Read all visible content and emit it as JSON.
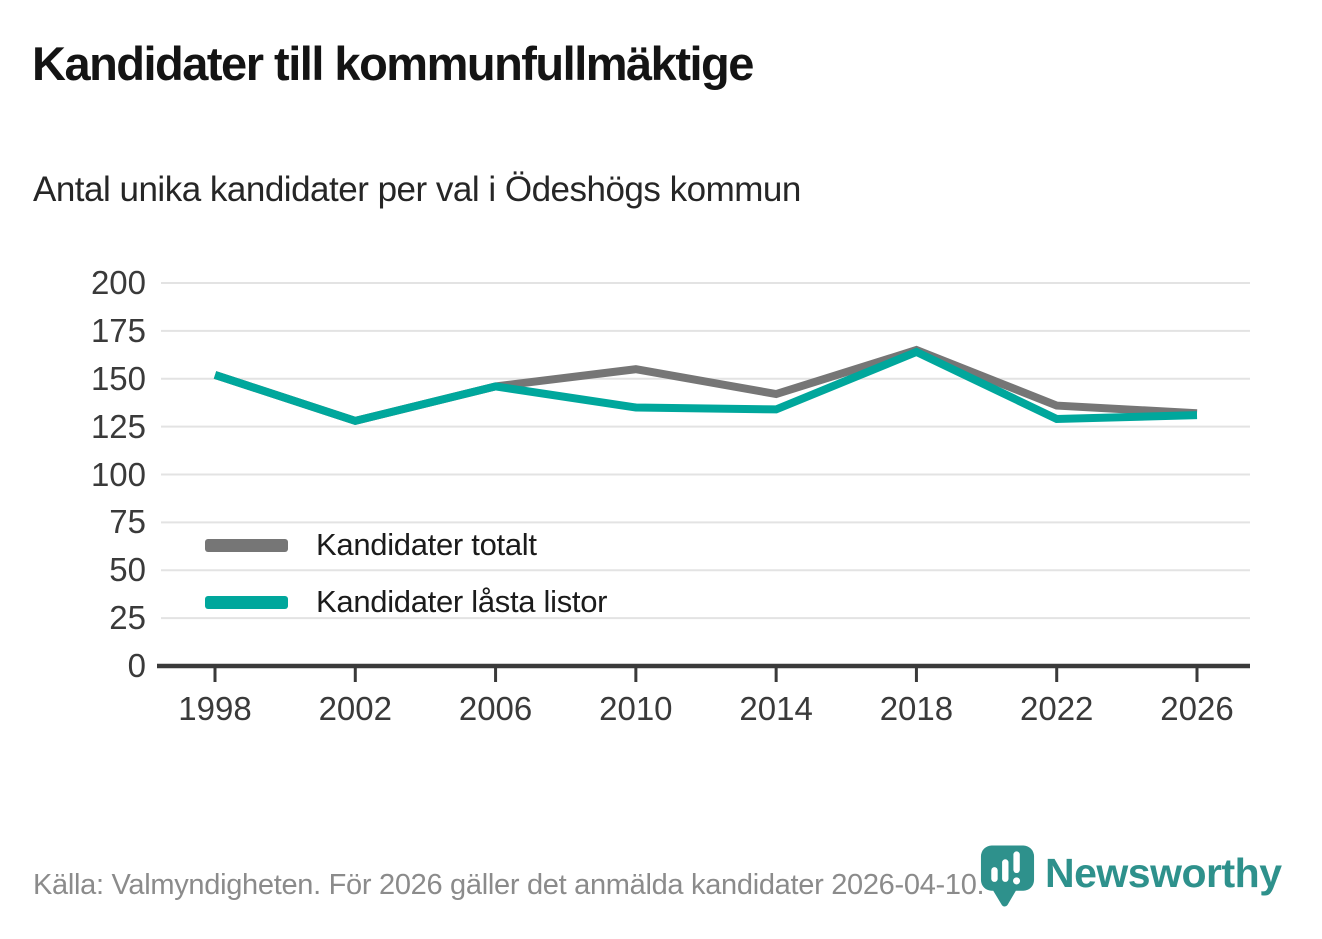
{
  "header": {
    "title": "Kandidater till kommunfullmäktige",
    "subtitle": "Antal unika kandidater per val i Ödeshögs kommun"
  },
  "chart_data": {
    "type": "line",
    "title": "Kandidater till kommunfullmäktige",
    "subtitle": "Antal unika kandidater per val i Ödeshögs kommun",
    "categories": [
      "1998",
      "2002",
      "2006",
      "2010",
      "2014",
      "2018",
      "2022",
      "2026"
    ],
    "series": [
      {
        "name": "Kandidater totalt",
        "color": "#767676",
        "values": [
          152,
          128,
          146,
          155,
          142,
          165,
          136,
          132
        ]
      },
      {
        "name": "Kandidater låsta listor",
        "color": "#00a79c",
        "values": [
          152,
          128,
          146,
          135,
          134,
          164,
          129,
          131
        ]
      }
    ],
    "ylim": [
      0,
      200
    ],
    "yticks": [
      0,
      25,
      50,
      75,
      100,
      125,
      150,
      175,
      200
    ],
    "grid": true,
    "legend_position": "inside bottom-left"
  },
  "footer": {
    "source_text": "Källa: Valmyndigheten. För 2026 gäller det anmälda kandidater 2026-04-10.",
    "brand_name": "Newsworthy"
  },
  "colors": {
    "series_total": "#767676",
    "series_locked": "#00a79c",
    "brand_teal": "#2e918c",
    "grid": "#e3e3e3",
    "axis": "#3a3a3a"
  }
}
